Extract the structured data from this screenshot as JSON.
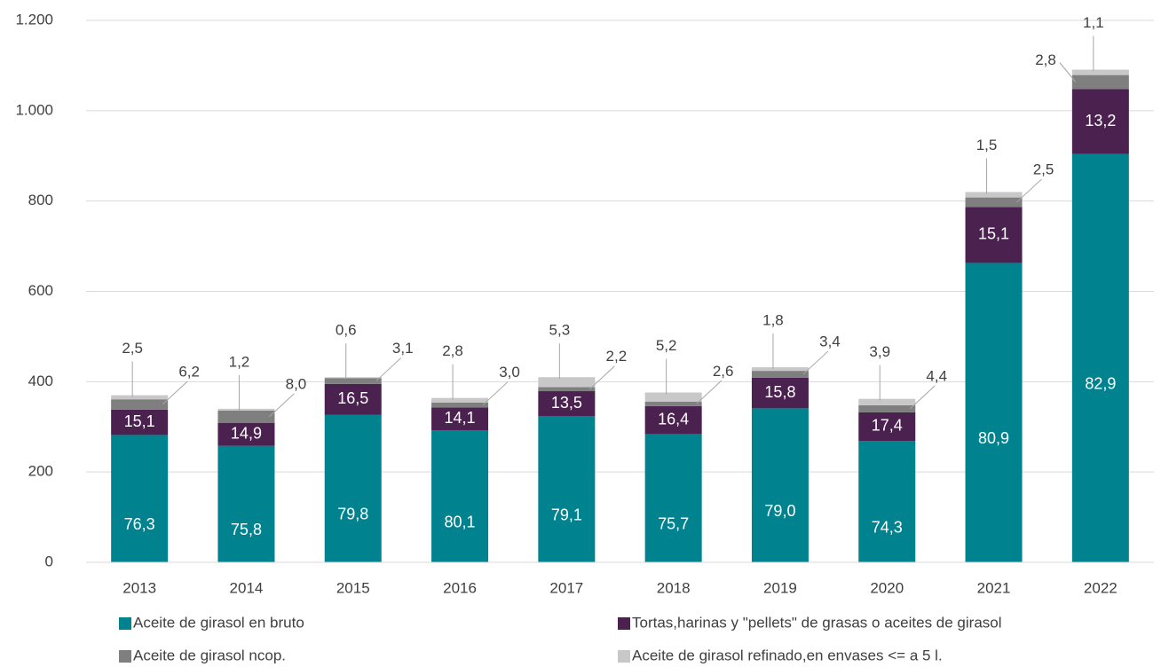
{
  "chart_data": {
    "type": "stacked_bar",
    "categories": [
      "2013",
      "2014",
      "2015",
      "2016",
      "2017",
      "2018",
      "2019",
      "2020",
      "2021",
      "2022"
    ],
    "series": [
      {
        "name": "Aceite de girasol en bruto",
        "color": "#00838f",
        "values": [
          282,
          258,
          327,
          292,
          324,
          284,
          341,
          269,
          663,
          904
        ],
        "share_labels": [
          "76,3",
          "75,8",
          "79,8",
          "80,1",
          "79,1",
          "75,7",
          "79,0",
          "74,3",
          "80,9",
          "82,9"
        ]
      },
      {
        "name": "Tortas,harinas y \"pellets\" de grasas o aceites de girasol",
        "color": "#4b2150",
        "values": [
          56,
          51,
          68,
          51,
          55,
          62,
          68,
          63,
          124,
          144
        ],
        "share_labels": [
          "15,1",
          "14,9",
          "16,5",
          "14,1",
          "13,5",
          "16,4",
          "15,8",
          "17,4",
          "15,1",
          "13,2"
        ]
      },
      {
        "name": "Aceite de girasol ncop.",
        "color": "#7f7f7f",
        "values": [
          23,
          27,
          13,
          11,
          9,
          10,
          15,
          16,
          21,
          31
        ],
        "share_labels": [
          "6,2",
          "8,0",
          "3,1",
          "3,0",
          "2,2",
          "2,6",
          "3,4",
          "4,4",
          "2,5",
          "2,8"
        ]
      },
      {
        "name": "Aceite de girasol refinado,en envases <= a 5 l.",
        "color": "#c8c8c8",
        "values": [
          9,
          4,
          2,
          10,
          22,
          20,
          8,
          14,
          12,
          12
        ],
        "share_labels": [
          "2,5",
          "1,2",
          "0,6",
          "2,8",
          "5,3",
          "5,2",
          "1,8",
          "3,9",
          "1,5",
          "1,1"
        ]
      }
    ],
    "ylim": [
      0,
      1200
    ],
    "yticks": [
      0,
      200,
      400,
      600,
      800,
      {
        "value": 1000,
        "label": "1.000"
      },
      {
        "value": 1200,
        "label": "1.200"
      }
    ],
    "grid": true,
    "legend": "bottom"
  }
}
